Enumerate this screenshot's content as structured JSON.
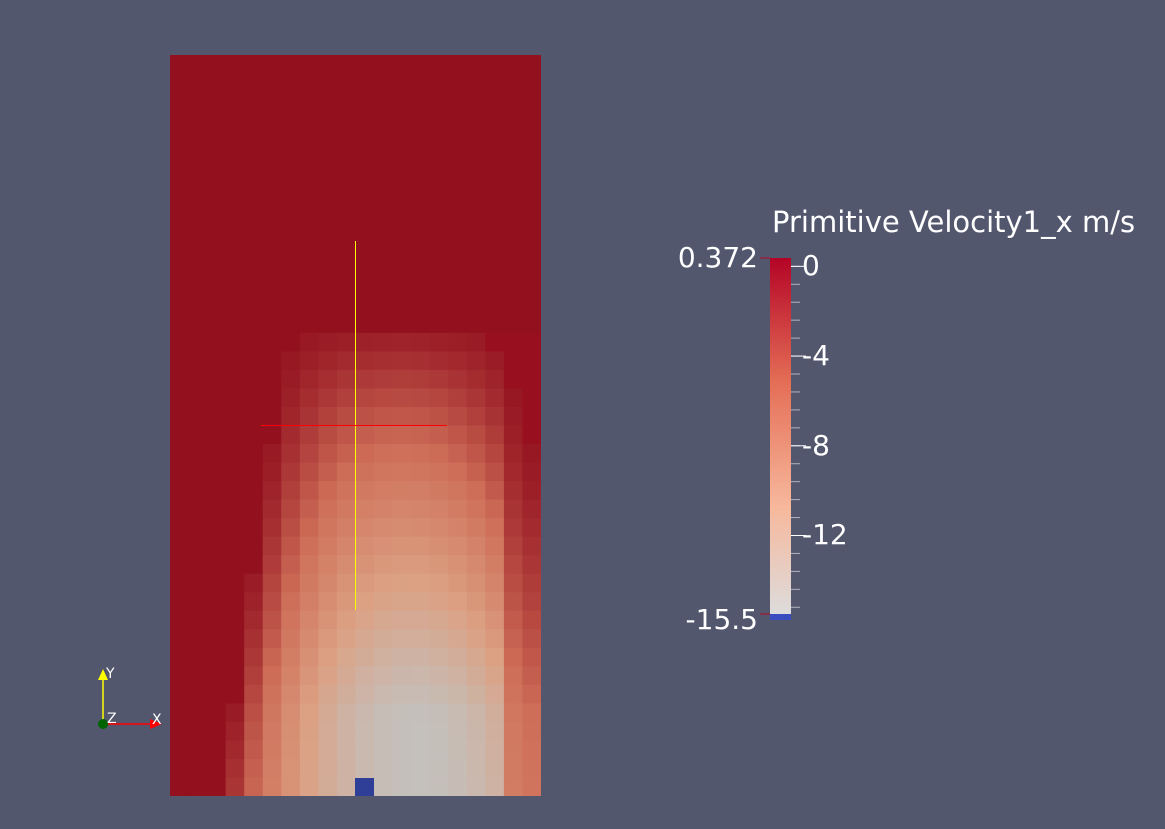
{
  "colorbar": {
    "title": "Primitive Velocity1_x m/s",
    "max_label": "0.372",
    "min_label": "-15.5",
    "range": [
      -15.5,
      0.372
    ],
    "ticks": [
      "0",
      "-4",
      "-8",
      "-12"
    ],
    "tick_values": [
      0,
      -4,
      -8,
      -12
    ],
    "below_range_color": "#3b4cc0",
    "gradient_colors": [
      "#b40426",
      "#e46e56",
      "#f7b89c",
      "#dddcdc"
    ]
  },
  "orientation_axes": {
    "x_label": "X",
    "y_label": "Y",
    "z_label": "Z",
    "x_color": "#ff0000",
    "y_color": "#ffff00",
    "z_color": "#00a000"
  },
  "background_color": "#52576e",
  "field": {
    "top_color": "#93111f",
    "core_color": "#c4c0bc",
    "obstacle_color": "#2f3e96"
  },
  "crosshair": {
    "vertical_color": "#ffff00",
    "horizontal_color": "#ff0000"
  }
}
